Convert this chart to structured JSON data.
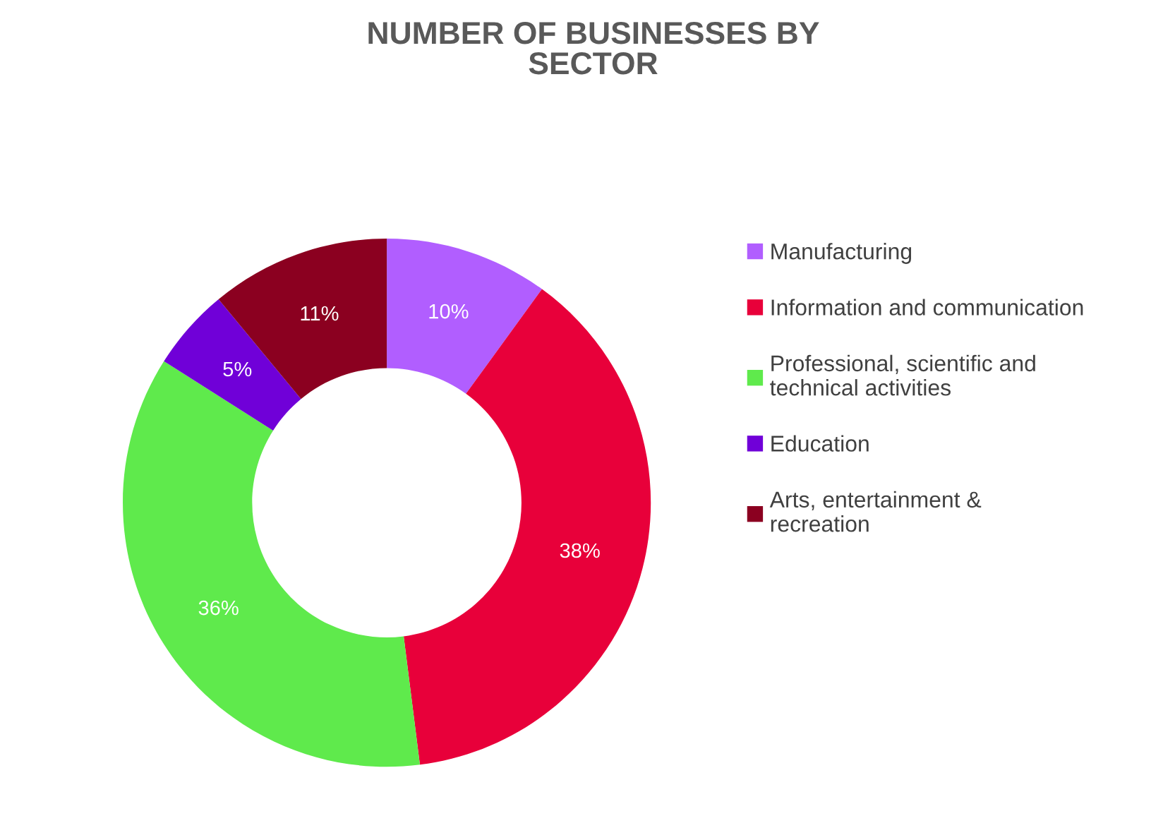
{
  "chart_data": {
    "type": "donut",
    "title": "NUMBER OF BUSINESSES BY SECTOR",
    "categories": [
      "Manufacturing",
      "Information and communication",
      "Professional, scientific and technical activities",
      "Education",
      "Arts, entertainment & recreation"
    ],
    "values": [
      10,
      38,
      36,
      5,
      11
    ],
    "colors": [
      "#b15eff",
      "#e8003a",
      "#5fea4c",
      "#7000d8",
      "#8b0020"
    ],
    "value_labels": [
      "10%",
      "38%",
      "36%",
      "5%",
      "11%"
    ],
    "legend": "right"
  }
}
